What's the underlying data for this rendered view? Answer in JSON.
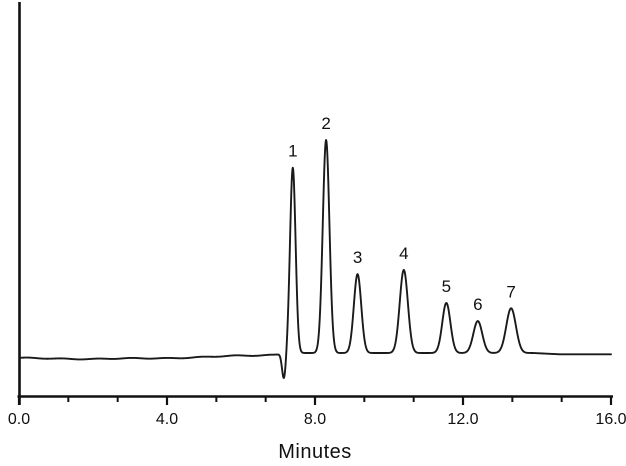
{
  "figure": {
    "background": "#ffffff",
    "trace_color": "#1a1a1a",
    "axis_color": "#111111",
    "text_color": "#111111"
  },
  "chart_data": {
    "type": "line",
    "subtype": "chromatogram",
    "title": "",
    "xlabel": "Minutes",
    "ylabel": "",
    "xlim": [
      0,
      16
    ],
    "grid": false,
    "legend": false,
    "y_axis_labeled": false,
    "x_major_ticks": [
      {
        "t": 0,
        "label": "0.0"
      },
      {
        "t": 4,
        "label": "4.0"
      },
      {
        "t": 8,
        "label": "8.0"
      },
      {
        "t": 12,
        "label": "12.0"
      },
      {
        "t": 16,
        "label": "16.0"
      }
    ],
    "x_minor_ticks_per_major": 2,
    "height_unit": "relative intensity (tallest peak = 100)",
    "peaks": [
      {
        "label": "1",
        "rt_min": 7.4,
        "height_rel": 87,
        "sigma_min": 0.075
      },
      {
        "label": "2",
        "rt_min": 8.3,
        "height_rel": 100,
        "sigma_min": 0.09
      },
      {
        "label": "3",
        "rt_min": 9.15,
        "height_rel": 37,
        "sigma_min": 0.1
      },
      {
        "label": "4",
        "rt_min": 10.4,
        "height_rel": 39,
        "sigma_min": 0.11
      },
      {
        "label": "5",
        "rt_min": 11.55,
        "height_rel": 23.5,
        "sigma_min": 0.11
      },
      {
        "label": "6",
        "rt_min": 12.4,
        "height_rel": 15,
        "sigma_min": 0.12
      },
      {
        "label": "7",
        "rt_min": 13.3,
        "height_rel": 21,
        "sigma_min": 0.13
      }
    ],
    "injection_dip": {
      "rt_min": 7.16,
      "depth_rel": -12,
      "sigma_min": 0.05
    },
    "baseline_drift_rel": [
      [
        0,
        -2.4
      ],
      [
        1,
        -2.6
      ],
      [
        2,
        -2.8
      ],
      [
        3,
        -2.6
      ],
      [
        4,
        -2.4
      ],
      [
        5,
        -1.9
      ],
      [
        5.8,
        -1.4
      ],
      [
        6.5,
        -1.1
      ],
      [
        6.9,
        -0.8
      ],
      [
        7.05,
        -0.5
      ],
      [
        7.25,
        0
      ],
      [
        13.9,
        0
      ],
      [
        14.6,
        -0.6
      ],
      [
        16,
        -0.6
      ]
    ]
  }
}
